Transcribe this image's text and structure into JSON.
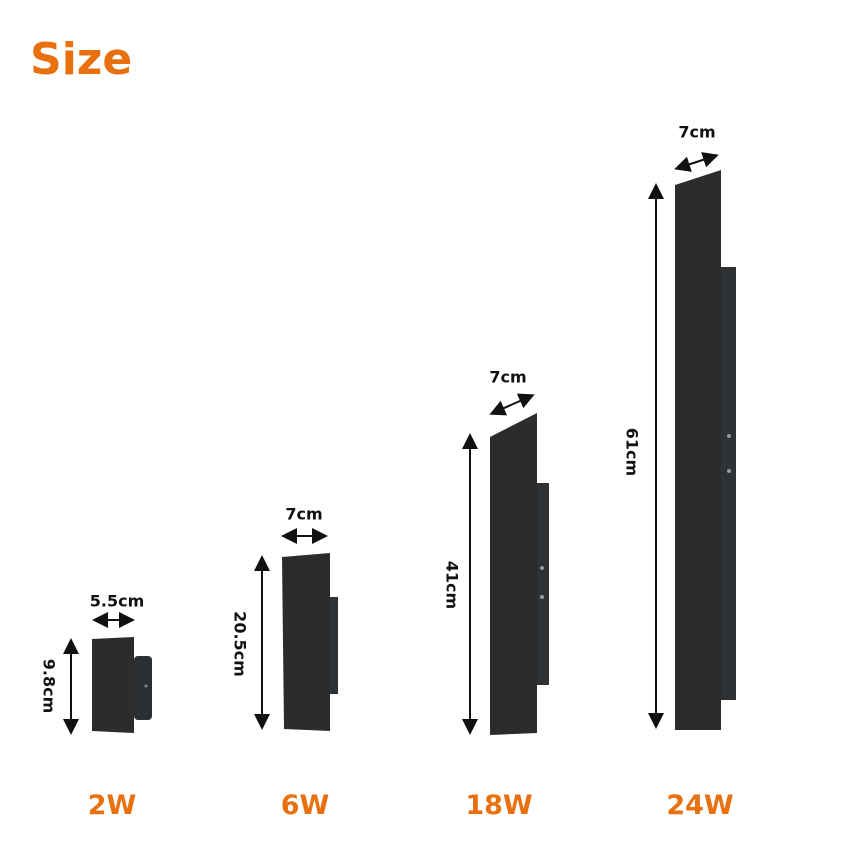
{
  "title": "Size",
  "accent_color": "#e8700f",
  "lamps": [
    {
      "power": "2W",
      "width": "5.5cm",
      "height": "9.8cm"
    },
    {
      "power": "6W",
      "width": "7cm",
      "height": "20.5cm"
    },
    {
      "power": "18W",
      "width": "7cm",
      "height": "41cm"
    },
    {
      "power": "24W",
      "width": "7cm",
      "height": "61cm"
    }
  ]
}
